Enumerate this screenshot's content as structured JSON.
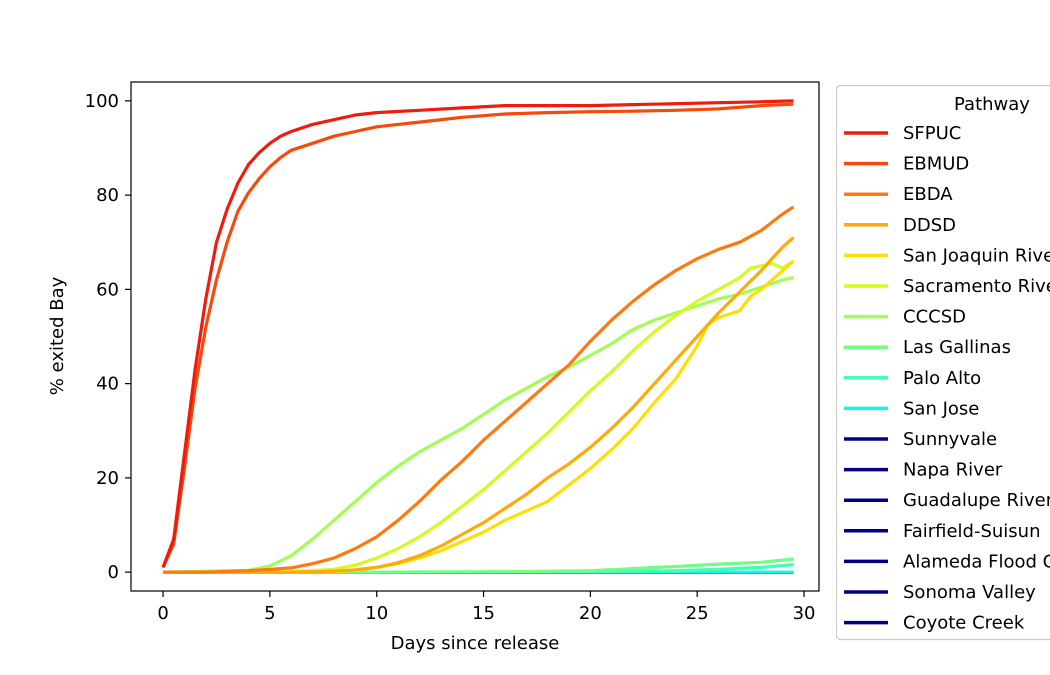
{
  "chart_data": {
    "type": "line",
    "xlabel": "Days since release",
    "ylabel": "% exited Bay",
    "xlim": [
      -1.5,
      30.7
    ],
    "ylim": [
      -4,
      104
    ],
    "xticks": [
      0,
      5,
      10,
      15,
      20,
      25,
      30
    ],
    "yticks": [
      0,
      20,
      40,
      60,
      80,
      100
    ],
    "grid": false,
    "legend": {
      "title": "Pathway",
      "placement": "outside-right"
    },
    "series": [
      {
        "name": "SFPUC",
        "color": "#ee1b0e",
        "x": [
          0,
          0.5,
          1,
          1.5,
          2,
          2.5,
          3,
          3.5,
          4,
          4.5,
          5,
          5.5,
          6,
          7,
          8,
          9,
          10,
          12,
          14,
          16,
          18,
          20,
          22,
          24,
          26,
          28,
          29.5
        ],
        "y": [
          1,
          7,
          25,
          43,
          58,
          70,
          77,
          82.5,
          86.5,
          89,
          91,
          92.5,
          93.5,
          95,
          96,
          97,
          97.5,
          98,
          98.5,
          99,
          99,
          99,
          99.2,
          99.4,
          99.6,
          99.8,
          100
        ]
      },
      {
        "name": "EBMUD",
        "color": "#f64a0c",
        "x": [
          0,
          0.5,
          1,
          1.5,
          2,
          2.5,
          3,
          3.5,
          4,
          4.5,
          5,
          5.5,
          6,
          7,
          8,
          9,
          10,
          12,
          14,
          16,
          18,
          20,
          22,
          24,
          26,
          28,
          29.5
        ],
        "y": [
          1,
          6,
          22,
          39,
          52,
          62,
          70,
          76.5,
          80.5,
          83.5,
          86,
          88,
          89.5,
          91,
          92.5,
          93.5,
          94.5,
          95.5,
          96.5,
          97.2,
          97.5,
          97.7,
          97.8,
          98,
          98.3,
          99,
          99.3
        ]
      },
      {
        "name": "EBDA",
        "color": "#fe7a10",
        "x": [
          0,
          2,
          4,
          5,
          6,
          7,
          8,
          9,
          10,
          11,
          12,
          13,
          14,
          15,
          16,
          17,
          18,
          19,
          20,
          21,
          22,
          23,
          24,
          25,
          26,
          27,
          28,
          29,
          29.5
        ],
        "y": [
          0,
          0,
          0.3,
          0.6,
          0.9,
          1.8,
          3,
          5,
          7.5,
          11,
          15,
          19.5,
          23.5,
          28,
          32,
          36,
          40,
          44,
          49,
          53.5,
          57.5,
          61,
          64,
          66.5,
          68.5,
          70,
          72.5,
          76,
          77.5
        ]
      },
      {
        "name": "DDSD",
        "color": "#feaa08",
        "x": [
          0,
          4,
          6,
          8,
          9,
          10,
          11,
          12,
          13,
          14,
          15,
          16,
          17,
          18,
          19,
          20,
          21,
          22,
          23,
          24,
          25,
          26,
          27,
          28,
          29,
          29.5
        ],
        "y": [
          0,
          0,
          0,
          0.2,
          0.5,
          1,
          2,
          3.5,
          5.5,
          8,
          10.5,
          13.5,
          16.5,
          20,
          23,
          26.5,
          30.5,
          35,
          40,
          45,
          50,
          55,
          59.5,
          64,
          69,
          71
        ]
      },
      {
        "name": "San Joaquin River",
        "color": "#fbe005",
        "x": [
          0,
          6,
          8,
          9,
          10,
          11,
          12,
          13,
          14,
          15,
          16,
          17,
          18,
          19,
          20,
          21,
          22,
          23,
          24,
          25,
          25.5,
          26,
          27,
          27.5,
          28,
          28.5,
          29,
          29.5
        ],
        "y": [
          0,
          0,
          0.1,
          0.4,
          1,
          1.8,
          3,
          4.5,
          6.5,
          8.5,
          11,
          13,
          15,
          18.5,
          22,
          26,
          30.5,
          36,
          41,
          48,
          52.5,
          54,
          55.5,
          58.5,
          60,
          62,
          64,
          66
        ]
      },
      {
        "name": "Sacramento River",
        "color": "#d4fa22",
        "x": [
          0,
          6,
          8,
          9,
          10,
          11,
          12,
          13,
          14,
          15,
          16,
          17,
          18,
          19,
          20,
          21,
          22,
          23,
          24,
          25,
          26,
          27,
          27.5,
          28,
          28.5,
          29,
          29.5
        ],
        "y": [
          0,
          0.1,
          0.6,
          1.5,
          3,
          5,
          7.5,
          10.5,
          14,
          17.5,
          21.5,
          25.5,
          29.5,
          34,
          38.5,
          42.5,
          47,
          51,
          54.5,
          57.5,
          60,
          62.5,
          64.5,
          65,
          65.5,
          64.5,
          66
        ]
      },
      {
        "name": "CCCSD",
        "color": "#a2fe55",
        "x": [
          0,
          4,
          5,
          6,
          7,
          8,
          9,
          10,
          11,
          12,
          13,
          14,
          15,
          16,
          17,
          18,
          19,
          20,
          21,
          22,
          23,
          24,
          25,
          26,
          27,
          28,
          29,
          29.5
        ],
        "y": [
          0,
          0.4,
          1.3,
          3.5,
          7,
          11,
          15,
          19,
          22.5,
          25.5,
          28,
          30.5,
          33.5,
          36.5,
          39,
          41.5,
          43.5,
          46,
          48.5,
          51.5,
          53.5,
          55,
          56.5,
          58,
          59,
          60.5,
          62,
          62.5
        ]
      },
      {
        "name": "Las Gallinas",
        "color": "#70fe87",
        "x": [
          0,
          10,
          16,
          20,
          24,
          26,
          28,
          29.5
        ],
        "y": [
          0,
          0,
          0.1,
          0.3,
          1.2,
          1.7,
          2.1,
          2.8
        ]
      },
      {
        "name": "Palo Alto",
        "color": "#44fdb6",
        "x": [
          0,
          10,
          20,
          24,
          26,
          28,
          29.5
        ],
        "y": [
          0,
          0,
          0.1,
          0.3,
          0.6,
          1,
          1.6
        ]
      },
      {
        "name": "San Jose",
        "color": "#17f5e4",
        "x": [
          0,
          29.5
        ],
        "y": [
          0,
          0
        ]
      },
      {
        "name": "Sunnyvale",
        "color": "#000080",
        "x": [
          0,
          29.5
        ],
        "y": [
          0,
          0
        ]
      },
      {
        "name": "Napa River",
        "color": "#000080",
        "x": [
          0,
          29.5
        ],
        "y": [
          0,
          0
        ]
      },
      {
        "name": "Guadalupe River",
        "color": "#000080",
        "x": [
          0,
          29.5
        ],
        "y": [
          0,
          0
        ]
      },
      {
        "name": "Fairfield-Suisun",
        "color": "#000080",
        "x": [
          0,
          29.5
        ],
        "y": [
          0,
          0
        ]
      },
      {
        "name": "Alameda Flood Control",
        "color": "#000080",
        "x": [
          0,
          29.5
        ],
        "y": [
          0,
          0
        ]
      },
      {
        "name": "Sonoma Valley",
        "color": "#000080",
        "x": [
          0,
          29.5
        ],
        "y": [
          0,
          0
        ]
      },
      {
        "name": "Coyote Creek",
        "color": "#000080",
        "x": [
          0,
          29.5
        ],
        "y": [
          0,
          0
        ]
      }
    ]
  }
}
